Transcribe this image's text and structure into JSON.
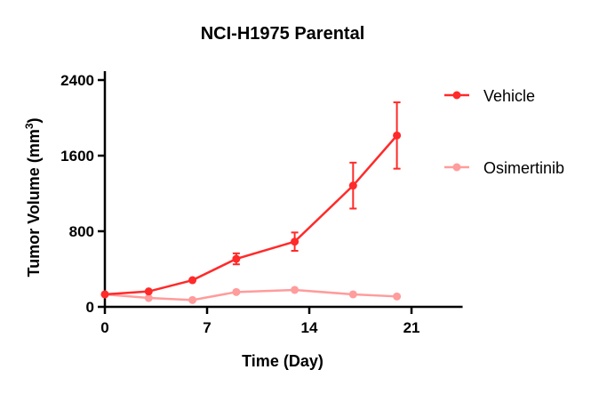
{
  "chart_data": {
    "type": "line",
    "title": "NCI-H1975 Parental",
    "xlabel": "Time (Day)",
    "ylabel": "Tumor Volume (mm",
    "ylabel_sup": "3",
    "ylabel_end": ")",
    "xlim": [
      0,
      24.5
    ],
    "ylim": [
      0,
      2400
    ],
    "xticks": [
      0,
      7,
      14,
      21
    ],
    "yticks": [
      0,
      800,
      1600,
      2400
    ],
    "grid": false,
    "legend_position": "right",
    "series": [
      {
        "name": "Vehicle",
        "color": "#ff2a2a",
        "x": [
          0,
          3,
          6,
          9,
          13,
          17,
          20
        ],
        "y": [
          132,
          163,
          282,
          508,
          690,
          1283,
          1813
        ],
        "error": [
          null,
          null,
          null,
          58,
          97,
          243,
          351
        ]
      },
      {
        "name": "Osimertinib",
        "color": "#ff9c9c",
        "x": [
          0,
          3,
          6,
          9,
          13,
          17,
          20
        ],
        "y": [
          132,
          94,
          72,
          157,
          179,
          132,
          110
        ],
        "error": [
          null,
          null,
          null,
          null,
          null,
          null,
          null
        ]
      }
    ]
  }
}
